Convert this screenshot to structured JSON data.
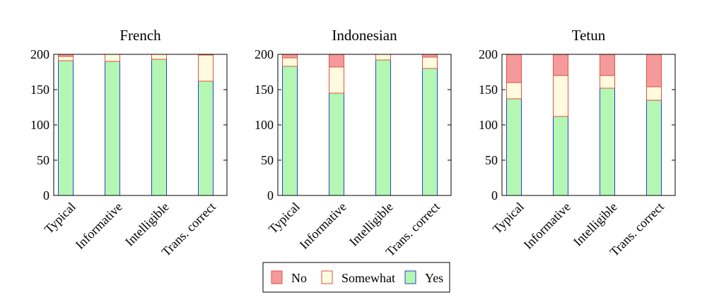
{
  "chart_data": [
    {
      "type": "bar",
      "stacked": true,
      "title": "French",
      "categories": [
        "Typical",
        "Informative",
        "Intelligible",
        "Trans. correct"
      ],
      "ylim": [
        0,
        200
      ],
      "yticks": [
        0,
        50,
        100,
        150,
        200
      ],
      "series": [
        {
          "name": "Yes",
          "values": [
            191,
            190,
            193,
            162
          ]
        },
        {
          "name": "Somewhat",
          "values": [
            6,
            10,
            7,
            37
          ]
        },
        {
          "name": "No",
          "values": [
            3,
            0,
            0,
            1
          ]
        }
      ]
    },
    {
      "type": "bar",
      "stacked": true,
      "title": "Indonesian",
      "categories": [
        "Typical",
        "Informative",
        "Intelligible",
        "Trans. correct"
      ],
      "ylim": [
        0,
        200
      ],
      "yticks": [
        0,
        50,
        100,
        150,
        200
      ],
      "series": [
        {
          "name": "Yes",
          "values": [
            183,
            145,
            192,
            180
          ]
        },
        {
          "name": "Somewhat",
          "values": [
            12,
            37,
            8,
            16
          ]
        },
        {
          "name": "No",
          "values": [
            5,
            18,
            0,
            4
          ]
        }
      ]
    },
    {
      "type": "bar",
      "stacked": true,
      "title": "Tetun",
      "categories": [
        "Typical",
        "Informative",
        "Intelligible",
        "Trans. correct"
      ],
      "ylim": [
        0,
        200
      ],
      "yticks": [
        0,
        50,
        100,
        150,
        200
      ],
      "series": [
        {
          "name": "Yes",
          "values": [
            137,
            112,
            152,
            135
          ]
        },
        {
          "name": "Somewhat",
          "values": [
            23,
            58,
            18,
            19
          ]
        },
        {
          "name": "No",
          "values": [
            40,
            30,
            30,
            46
          ]
        }
      ]
    }
  ],
  "legend": {
    "placement": "bottom-center",
    "entries": [
      "No",
      "Somewhat",
      "Yes"
    ]
  },
  "colors": {
    "Yes": {
      "fill": "#b3f7b3",
      "stroke": "#2b3fd6"
    },
    "Somewhat": {
      "fill": "#fffbe0",
      "stroke": "#e0533d"
    },
    "No": {
      "fill": "#f59a9a",
      "stroke": "#e0533d"
    }
  }
}
